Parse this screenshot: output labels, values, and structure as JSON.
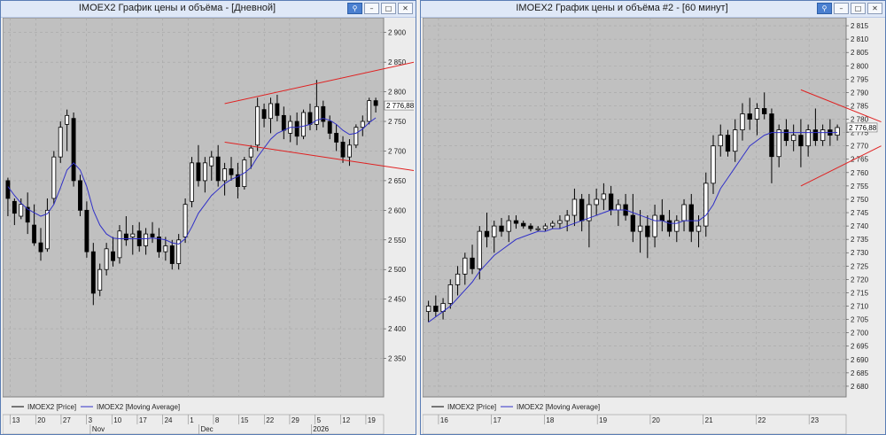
{
  "windows": [
    {
      "title": "IMOEX2 График цены и объёма - [Дневной]",
      "buttons": {
        "pin": "⚲",
        "minimize": "–",
        "maximize": "□",
        "close": "✕"
      },
      "chart_data": {
        "type": "candlestick",
        "ylim": [
          2285,
          2925
        ],
        "y_ticks": [
          "2 900",
          "2 850",
          "2 800",
          "2 750",
          "2 700",
          "2 650",
          "2 600",
          "2 550",
          "2 500",
          "2 450",
          "2 400",
          "2 350"
        ],
        "y_tick_values": [
          2900,
          2850,
          2800,
          2750,
          2700,
          2650,
          2600,
          2550,
          2500,
          2450,
          2400,
          2350
        ],
        "last_price_label": "2 776,88",
        "last_price": 2776.88,
        "x_ticks": [
          "13",
          "20",
          "27",
          "3",
          "10",
          "17",
          "24",
          "1",
          "8",
          "15",
          "22",
          "29",
          "5",
          "12",
          "19"
        ],
        "month_labels": [
          "Nov",
          "Dec",
          "2026"
        ],
        "legend": [
          "IMOEX2 [Price]",
          "IMOEX2 [Moving Average]"
        ],
        "colors": {
          "background": "#c0c0c0",
          "grid": "#a6a6a6",
          "ma": "#3030c8",
          "trendline": "#e02020",
          "candle": "#000000"
        },
        "candles": [
          [
            2650,
            2655,
            2590,
            2620
          ],
          [
            2615,
            2620,
            2575,
            2595
          ],
          [
            2590,
            2620,
            2585,
            2610
          ],
          [
            2605,
            2630,
            2560,
            2580
          ],
          [
            2575,
            2610,
            2540,
            2545
          ],
          [
            2545,
            2570,
            2515,
            2530
          ],
          [
            2535,
            2620,
            2530,
            2600
          ],
          [
            2620,
            2700,
            2610,
            2690
          ],
          [
            2690,
            2750,
            2680,
            2740
          ],
          [
            2745,
            2770,
            2700,
            2760
          ],
          [
            2755,
            2765,
            2640,
            2650
          ],
          [
            2650,
            2660,
            2590,
            2600
          ],
          [
            2600,
            2615,
            2520,
            2530
          ],
          [
            2530,
            2545,
            2440,
            2460
          ],
          [
            2465,
            2510,
            2455,
            2500
          ],
          [
            2500,
            2545,
            2490,
            2535
          ],
          [
            2530,
            2555,
            2505,
            2515
          ],
          [
            2520,
            2575,
            2510,
            2565
          ],
          [
            2560,
            2590,
            2540,
            2550
          ],
          [
            2555,
            2575,
            2525,
            2560
          ],
          [
            2565,
            2580,
            2530,
            2540
          ],
          [
            2540,
            2570,
            2525,
            2560
          ],
          [
            2560,
            2580,
            2545,
            2555
          ],
          [
            2555,
            2570,
            2520,
            2530
          ],
          [
            2530,
            2555,
            2515,
            2540
          ],
          [
            2540,
            2550,
            2500,
            2510
          ],
          [
            2510,
            2560,
            2500,
            2550
          ],
          [
            2555,
            2620,
            2545,
            2610
          ],
          [
            2615,
            2690,
            2605,
            2680
          ],
          [
            2680,
            2710,
            2640,
            2650
          ],
          [
            2650,
            2690,
            2630,
            2680
          ],
          [
            2675,
            2700,
            2650,
            2690
          ],
          [
            2690,
            2710,
            2640,
            2650
          ],
          [
            2650,
            2680,
            2625,
            2670
          ],
          [
            2670,
            2690,
            2650,
            2660
          ],
          [
            2660,
            2680,
            2620,
            2640
          ],
          [
            2640,
            2690,
            2635,
            2685
          ],
          [
            2690,
            2710,
            2670,
            2705
          ],
          [
            2710,
            2790,
            2700,
            2775
          ],
          [
            2770,
            2780,
            2740,
            2755
          ],
          [
            2755,
            2790,
            2730,
            2780
          ],
          [
            2780,
            2795,
            2750,
            2760
          ],
          [
            2760,
            2775,
            2720,
            2735
          ],
          [
            2730,
            2760,
            2715,
            2750
          ],
          [
            2750,
            2765,
            2710,
            2725
          ],
          [
            2725,
            2770,
            2720,
            2765
          ],
          [
            2765,
            2780,
            2735,
            2745
          ],
          [
            2745,
            2820,
            2735,
            2775
          ],
          [
            2775,
            2785,
            2740,
            2750
          ],
          [
            2750,
            2760,
            2720,
            2730
          ],
          [
            2730,
            2745,
            2700,
            2715
          ],
          [
            2715,
            2725,
            2680,
            2690
          ],
          [
            2690,
            2720,
            2675,
            2710
          ],
          [
            2710,
            2745,
            2705,
            2740
          ],
          [
            2740,
            2760,
            2725,
            2750
          ],
          [
            2750,
            2790,
            2745,
            2785
          ],
          [
            2785,
            2790,
            2765,
            2776.88
          ]
        ],
        "moving_average": [
          2640,
          2625,
          2612,
          2602,
          2596,
          2590,
          2594,
          2610,
          2638,
          2668,
          2680,
          2668,
          2640,
          2600,
          2575,
          2560,
          2553,
          2552,
          2552,
          2552,
          2552,
          2552,
          2553,
          2552,
          2550,
          2545,
          2543,
          2552,
          2572,
          2595,
          2610,
          2625,
          2635,
          2645,
          2652,
          2657,
          2663,
          2672,
          2690,
          2705,
          2720,
          2730,
          2735,
          2740,
          2740,
          2742,
          2745,
          2752,
          2755,
          2752,
          2745,
          2735,
          2728,
          2730,
          2737,
          2748,
          2756
        ],
        "trendlines": [
          {
            "p1": [
              14,
              2715
            ],
            "p2": [
              13,
              2780
            ],
            "x1": [
              0.59,
              1.0
            ]
          },
          {
            "note": "triangle"
          }
        ]
      }
    },
    {
      "title": "IMOEX2 График цены и объёма #2 - [60 минут]",
      "buttons": {
        "pin": "⚲",
        "minimize": "–",
        "maximize": "□",
        "close": "✕"
      },
      "chart_data": {
        "type": "candlestick",
        "ylim": [
          2676,
          2818
        ],
        "y_ticks": [
          "2 815",
          "2 810",
          "2 805",
          "2 800",
          "2 795",
          "2 790",
          "2 785",
          "2 780",
          "2 775",
          "2 770",
          "2 765",
          "2 760",
          "2 755",
          "2 750",
          "2 745",
          "2 740",
          "2 735",
          "2 730",
          "2 725",
          "2 720",
          "2 715",
          "2 710",
          "2 705",
          "2 700",
          "2 695",
          "2 690",
          "2 685",
          "2 680"
        ],
        "y_tick_values": [
          2815,
          2810,
          2805,
          2800,
          2795,
          2790,
          2785,
          2780,
          2775,
          2770,
          2765,
          2760,
          2755,
          2750,
          2745,
          2740,
          2735,
          2730,
          2725,
          2720,
          2715,
          2710,
          2705,
          2700,
          2695,
          2690,
          2685,
          2680
        ],
        "last_price_label": "2 776,88",
        "last_price": 2776.88,
        "x_ticks": [
          "16",
          "17",
          "18",
          "19",
          "20",
          "21",
          "22",
          "23"
        ],
        "legend": [
          "IMOEX2 [Price]",
          "IMOEX2 [Moving Average]"
        ],
        "colors": {
          "background": "#c0c0c0",
          "grid": "#a6a6a6",
          "ma": "#3030c8",
          "trendline": "#e02020",
          "candle": "#000000"
        },
        "candles": [
          [
            2708,
            2712,
            2704,
            2710
          ],
          [
            2710,
            2714,
            2706,
            2708
          ],
          [
            2708,
            2713,
            2705,
            2711
          ],
          [
            2711,
            2720,
            2709,
            2718
          ],
          [
            2718,
            2725,
            2714,
            2722
          ],
          [
            2722,
            2730,
            2718,
            2728
          ],
          [
            2728,
            2733,
            2722,
            2724
          ],
          [
            2724,
            2740,
            2720,
            2738
          ],
          [
            2738,
            2745,
            2732,
            2736
          ],
          [
            2736,
            2742,
            2730,
            2740
          ],
          [
            2740,
            2743,
            2736,
            2738
          ],
          [
            2738,
            2744,
            2734,
            2742
          ],
          [
            2742,
            2744,
            2739,
            2741
          ],
          [
            2741,
            2742,
            2739,
            2740
          ],
          [
            2740,
            2741,
            2738,
            2739
          ],
          [
            2739,
            2740,
            2738,
            2739
          ],
          [
            2739,
            2741,
            2738,
            2740
          ],
          [
            2740,
            2742,
            2739,
            2741
          ],
          [
            2741,
            2744,
            2739,
            2742
          ],
          [
            2742,
            2746,
            2738,
            2744
          ],
          [
            2744,
            2754,
            2740,
            2750
          ],
          [
            2750,
            2752,
            2738,
            2742
          ],
          [
            2742,
            2752,
            2732,
            2748
          ],
          [
            2748,
            2754,
            2744,
            2750
          ],
          [
            2750,
            2756,
            2746,
            2752
          ],
          [
            2752,
            2755,
            2744,
            2746
          ],
          [
            2746,
            2750,
            2740,
            2748
          ],
          [
            2748,
            2752,
            2742,
            2744
          ],
          [
            2744,
            2752,
            2734,
            2738
          ],
          [
            2738,
            2746,
            2730,
            2740
          ],
          [
            2740,
            2744,
            2728,
            2736
          ],
          [
            2736,
            2748,
            2732,
            2744
          ],
          [
            2744,
            2750,
            2738,
            2742
          ],
          [
            2742,
            2746,
            2736,
            2738
          ],
          [
            2738,
            2744,
            2734,
            2742
          ],
          [
            2742,
            2750,
            2738,
            2748
          ],
          [
            2748,
            2752,
            2734,
            2738
          ],
          [
            2738,
            2744,
            2732,
            2740
          ],
          [
            2740,
            2760,
            2736,
            2756
          ],
          [
            2756,
            2774,
            2752,
            2770
          ],
          [
            2770,
            2778,
            2766,
            2774
          ],
          [
            2774,
            2776,
            2766,
            2768
          ],
          [
            2768,
            2780,
            2764,
            2776
          ],
          [
            2776,
            2786,
            2772,
            2782
          ],
          [
            2782,
            2788,
            2776,
            2780
          ],
          [
            2780,
            2786,
            2774,
            2784
          ],
          [
            2784,
            2790,
            2780,
            2782
          ],
          [
            2782,
            2784,
            2756,
            2766
          ],
          [
            2766,
            2778,
            2762,
            2776
          ],
          [
            2776,
            2780,
            2770,
            2772
          ],
          [
            2772,
            2778,
            2768,
            2774
          ],
          [
            2774,
            2780,
            2762,
            2770
          ],
          [
            2770,
            2778,
            2766,
            2776
          ],
          [
            2776,
            2784,
            2770,
            2772
          ],
          [
            2772,
            2778,
            2770,
            2776
          ],
          [
            2776,
            2780,
            2770,
            2774
          ],
          [
            2774,
            2778,
            2772,
            2776.88
          ]
        ],
        "moving_average": [
          2704,
          2706,
          2708,
          2710,
          2713,
          2716,
          2719,
          2723,
          2726,
          2729,
          2731,
          2733,
          2735,
          2736,
          2737,
          2738,
          2738,
          2739,
          2739,
          2740,
          2741,
          2742,
          2743,
          2744,
          2745,
          2746,
          2746,
          2746,
          2745,
          2744,
          2743,
          2742,
          2742,
          2741,
          2741,
          2742,
          2742,
          2742,
          2744,
          2748,
          2754,
          2758,
          2762,
          2766,
          2770,
          2772,
          2774,
          2775,
          2775,
          2775,
          2775,
          2775,
          2775,
          2775,
          2775,
          2775,
          2775
        ]
      }
    }
  ]
}
